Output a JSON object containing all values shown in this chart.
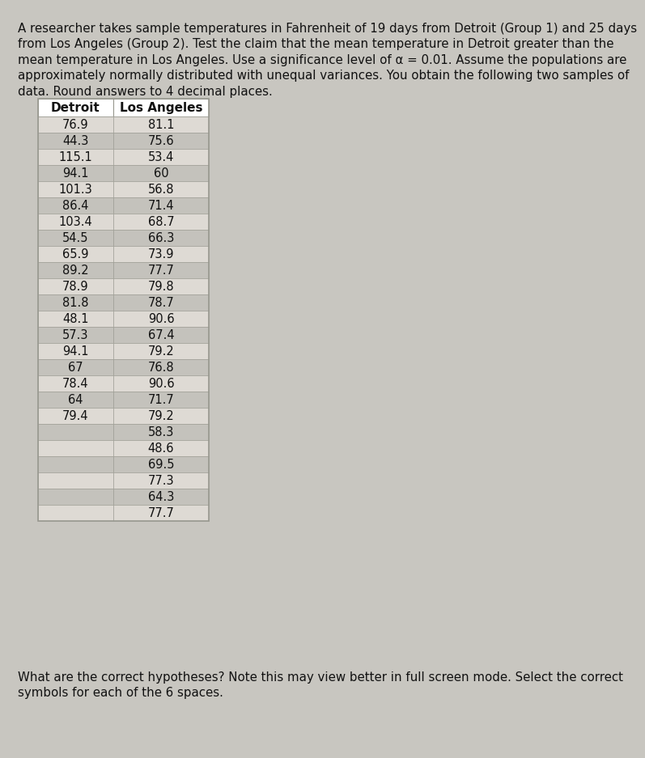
{
  "title_line1": "A researcher takes sample temperatures in Fahrenheit of 19 days from Detroit (Group 1) and 25 days",
  "title_line2": "from Los Angeles (Group 2). Test the claim that the mean temperature in Detroit greater than the",
  "title_line3": "mean temperature in Los Angeles. Use a significance level of α = 0.01. Assume the populations are",
  "title_line4": "approximately normally distributed with unequal variances. You obtain the following two samples of",
  "title_line5": "data. Round answers to 4 decimal places.",
  "footer_line1": "What are the correct hypotheses? Note this may view better in full screen mode. Select the correct",
  "footer_line2": "symbols for each of the 6 spaces.",
  "col1_header": "Detroit",
  "col2_header": "Los Angeles",
  "detroit": [
    76.9,
    44.3,
    115.1,
    94.1,
    101.3,
    86.4,
    103.4,
    54.5,
    65.9,
    89.2,
    78.9,
    81.8,
    48.1,
    57.3,
    94.1,
    67,
    78.4,
    64,
    79.4
  ],
  "los_angeles": [
    81.1,
    75.6,
    53.4,
    60,
    56.8,
    71.4,
    68.7,
    66.3,
    73.9,
    77.7,
    79.8,
    78.7,
    90.6,
    67.4,
    79.2,
    76.8,
    90.6,
    71.7,
    79.2,
    58.3,
    48.6,
    69.5,
    77.3,
    64.3,
    77.7
  ],
  "bg_color": "#c8c6c0",
  "table_bg_light": "#dedad4",
  "table_bg_dark": "#c4c2bc",
  "table_header_bg": "#ffffff",
  "table_border": "#999990",
  "text_color": "#111111",
  "title_fontsize": 10.8,
  "footer_fontsize": 10.8,
  "table_fontsize": 10.5,
  "header_fontsize": 11.0
}
